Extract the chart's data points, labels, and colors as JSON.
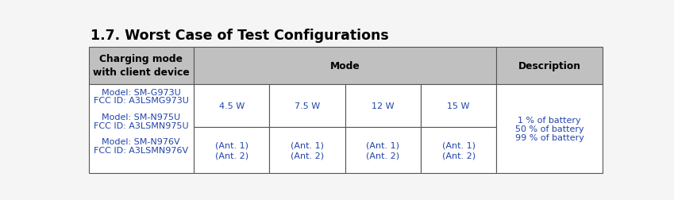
{
  "title": "1.7. Worst Case of Test Configurations",
  "title_fontsize": 12.5,
  "title_color": "#000000",
  "background_color": "#f5f5f5",
  "header_bg_color": "#c0c0c0",
  "header_text_color": "#000000",
  "cell_bg_color": "#ffffff",
  "border_color": "#555555",
  "col1_header": "Charging mode\nwith client device",
  "mode_header": "Mode",
  "desc_header": "Description",
  "mode_cols": [
    "4.5 W",
    "7.5 W",
    "12 W",
    "15 W"
  ],
  "ant_row": [
    "(Ant. 1)\n(Ant. 2)",
    "(Ant. 1)\n(Ant. 2)",
    "(Ant. 1)\n(Ant. 2)",
    "(Ant. 1)\n(Ant. 2)"
  ],
  "col1_line1": "Model: SM-G973U",
  "col1_line2": "FCC ID: A3LSMG973U",
  "col1_line3": "Model: SM-N975U",
  "col1_line4": "FCC ID: A3LSMN975U",
  "col1_line5": "Model: SM-N976V",
  "col1_line6": "FCC ID: A3LSMN976V",
  "desc_line1": "1 % of battery",
  "desc_line2": "50 % of battery",
  "desc_line3": "99 % of battery",
  "model_text_color": "#2244aa",
  "desc_text_color": "#2244aa",
  "mode_val_color": "#2244aa",
  "lw": 0.8
}
